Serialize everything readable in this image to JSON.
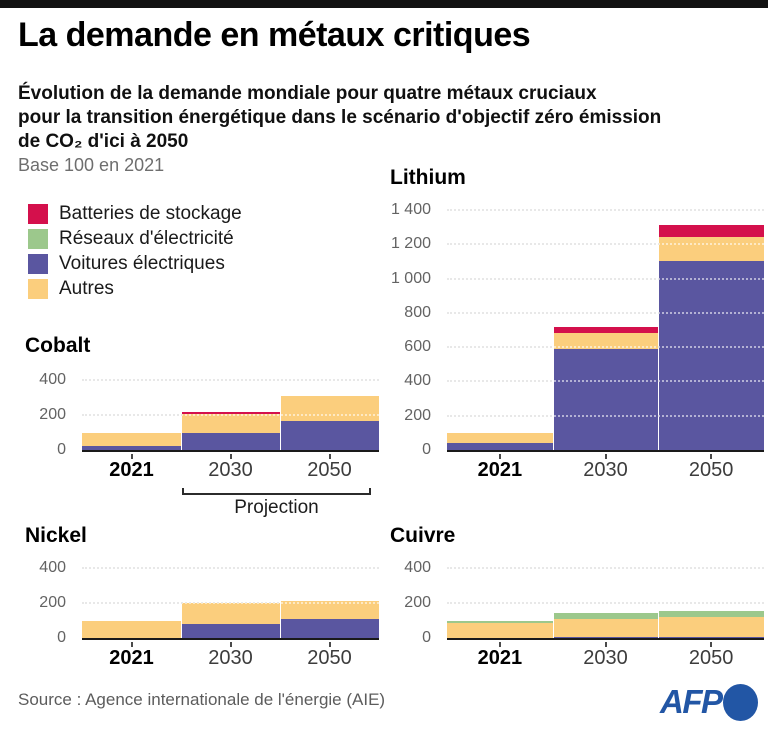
{
  "header": {
    "title": "La demande en métaux critiques",
    "subtitle_line1": "Évolution de la demande mondiale pour quatre métaux cruciaux",
    "subtitle_line2": "pour la transition énergétique dans le scénario d'objectif zéro émission",
    "subtitle_line3": "de CO₂ d'ici à 2050",
    "base_note": "Base 100 en 2021"
  },
  "legend": {
    "items": [
      {
        "label": "Batteries de stockage",
        "color": "#d4104c"
      },
      {
        "label": "Réseaux d'électricité",
        "color": "#9cc88c"
      },
      {
        "label": "Voitures électriques",
        "color": "#5a56a0"
      },
      {
        "label": "Autres",
        "color": "#fbce7d"
      }
    ]
  },
  "projection_label": "Projection",
  "footer": {
    "source": "Source : Agence internationale de l'énergie (AIE)",
    "logo_text": "AFP",
    "logo_color": "#2256a5"
  },
  "chart_data": [
    {
      "type": "bar",
      "stacked": true,
      "title": "Cobalt",
      "categories": [
        "2021",
        "2030",
        "2050"
      ],
      "series": [
        {
          "name": "Voitures électriques",
          "color": "#5a56a0",
          "values": [
            25,
            100,
            165
          ]
        },
        {
          "name": "Autres",
          "color": "#fbce7d",
          "values": [
            75,
            105,
            145
          ]
        },
        {
          "name": "Batteries de stockage",
          "color": "#d4104c",
          "values": [
            0,
            10,
            0
          ]
        },
        {
          "name": "Réseaux d'électricité",
          "color": "#9cc88c",
          "values": [
            0,
            0,
            0
          ]
        }
      ],
      "totals": [
        100,
        215,
        310
      ],
      "ylim": [
        0,
        400
      ],
      "yticks": [
        0,
        200,
        400
      ],
      "ytick_labels": [
        "0",
        "200",
        "400"
      ],
      "grid": "dotted",
      "legend_position": "top-left-shared"
    },
    {
      "type": "bar",
      "stacked": true,
      "title": "Lithium",
      "categories": [
        "2021",
        "2030",
        "2050"
      ],
      "series": [
        {
          "name": "Voitures électriques",
          "color": "#5a56a0",
          "values": [
            40,
            590,
            1100
          ]
        },
        {
          "name": "Autres",
          "color": "#fbce7d",
          "values": [
            60,
            90,
            140
          ]
        },
        {
          "name": "Batteries de stockage",
          "color": "#d4104c",
          "values": [
            0,
            40,
            70
          ]
        },
        {
          "name": "Réseaux d'électricité",
          "color": "#9cc88c",
          "values": [
            0,
            0,
            0
          ]
        }
      ],
      "totals": [
        100,
        720,
        1310
      ],
      "ylim": [
        0,
        1400
      ],
      "yticks": [
        0,
        200,
        400,
        600,
        800,
        1000,
        1200,
        1400
      ],
      "ytick_labels": [
        "0",
        "200",
        "400",
        "600",
        "800",
        "1 000",
        "1 200",
        "1 400"
      ],
      "grid": "dotted",
      "legend_position": "top-left-shared"
    },
    {
      "type": "bar",
      "stacked": true,
      "title": "Nickel",
      "categories": [
        "2021",
        "2030",
        "2050"
      ],
      "series": [
        {
          "name": "Voitures électriques",
          "color": "#5a56a0",
          "values": [
            0,
            78,
            108
          ]
        },
        {
          "name": "Autres",
          "color": "#fbce7d",
          "values": [
            100,
            122,
            102
          ]
        },
        {
          "name": "Batteries de stockage",
          "color": "#d4104c",
          "values": [
            0,
            0,
            0
          ]
        },
        {
          "name": "Réseaux d'électricité",
          "color": "#9cc88c",
          "values": [
            0,
            0,
            0
          ]
        }
      ],
      "totals": [
        100,
        200,
        210
      ],
      "ylim": [
        0,
        400
      ],
      "yticks": [
        0,
        200,
        400
      ],
      "ytick_labels": [
        "0",
        "200",
        "400"
      ],
      "grid": "dotted",
      "legend_position": "top-left-shared"
    },
    {
      "type": "bar",
      "stacked": true,
      "title": "Cuivre",
      "categories": [
        "2021",
        "2030",
        "2050"
      ],
      "series": [
        {
          "name": "Voitures électriques",
          "color": "#5a56a0",
          "values": [
            0,
            4,
            8
          ]
        },
        {
          "name": "Autres",
          "color": "#fbce7d",
          "values": [
            88,
            104,
            110
          ]
        },
        {
          "name": "Batteries de stockage",
          "color": "#d4104c",
          "values": [
            0,
            2,
            4
          ]
        },
        {
          "name": "Réseaux d'électricité",
          "color": "#9cc88c",
          "values": [
            12,
            35,
            33
          ]
        }
      ],
      "totals": [
        100,
        145,
        155
      ],
      "ylim": [
        0,
        400
      ],
      "yticks": [
        0,
        200,
        400
      ],
      "ytick_labels": [
        "0",
        "200",
        "400"
      ],
      "grid": "dotted",
      "legend_position": "top-left-shared"
    }
  ]
}
